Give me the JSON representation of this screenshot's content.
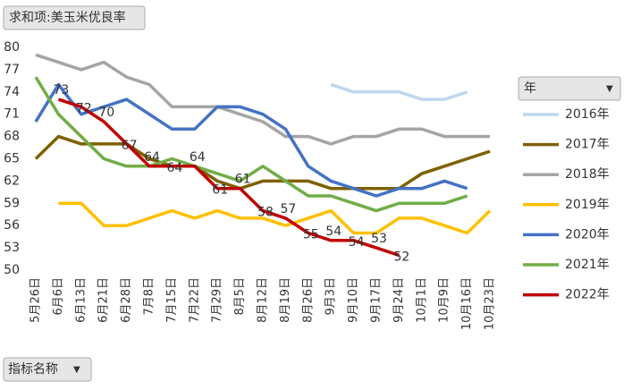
{
  "chart_data": {
    "type": "line",
    "title": "求和项:美玉米优良率",
    "legend_title": "年",
    "x_field": "指标名称",
    "categories": [
      "5月26日",
      "6月6日",
      "6月13日",
      "6月21日",
      "6月28日",
      "7月8日",
      "7月15日",
      "7月22日",
      "7月29日",
      "8月5日",
      "8月12日",
      "8月19日",
      "8月26日",
      "9月3日",
      "9月10日",
      "9月17日",
      "9月24日",
      "10月1日",
      "10月9日",
      "10月16日",
      "10月23日"
    ],
    "ylim": [
      50,
      80
    ],
    "yticks": [
      50,
      53,
      56,
      59,
      62,
      65,
      68,
      71,
      74,
      77,
      80
    ],
    "series": [
      {
        "name": "2016年",
        "color": "#bdd7ee",
        "values": [
          null,
          null,
          null,
          null,
          null,
          null,
          null,
          null,
          null,
          null,
          null,
          null,
          null,
          75,
          74,
          74,
          74,
          73,
          73,
          74,
          null
        ]
      },
      {
        "name": "2017年",
        "color": "#7f6000",
        "values": [
          65,
          68,
          67,
          67,
          67,
          65,
          64,
          64,
          62,
          61,
          62,
          62,
          62,
          61,
          61,
          61,
          61,
          63,
          64,
          65,
          66
        ]
      },
      {
        "name": "2018年",
        "color": "#a5a5a5",
        "values": [
          79,
          78,
          77,
          78,
          76,
          75,
          72,
          72,
          72,
          71,
          70,
          68,
          68,
          67,
          68,
          68,
          69,
          69,
          68,
          68,
          68
        ]
      },
      {
        "name": "2019年",
        "color": "#ffc000",
        "values": [
          null,
          59,
          59,
          56,
          56,
          57,
          58,
          57,
          58,
          57,
          57,
          56,
          57,
          58,
          55,
          55,
          57,
          57,
          56,
          55,
          58
        ]
      },
      {
        "name": "2020年",
        "color": "#4472c4",
        "values": [
          70,
          75,
          71,
          72,
          73,
          71,
          69,
          69,
          72,
          72,
          71,
          69,
          64,
          62,
          61,
          60,
          61,
          61,
          62,
          61,
          null
        ]
      },
      {
        "name": "2021年",
        "color": "#70ad47",
        "values": [
          76,
          71,
          68,
          65,
          64,
          64,
          65,
          64,
          63,
          62,
          64,
          62,
          60,
          60,
          59,
          58,
          59,
          59,
          59,
          60,
          null
        ]
      },
      {
        "name": "2022年",
        "color": "#c00000",
        "values": [
          null,
          73,
          72,
          70,
          67,
          64,
          64,
          64,
          61,
          61,
          58,
          57,
          55,
          54,
          54,
          53,
          52,
          null,
          null,
          null,
          null
        ],
        "labels": true
      }
    ]
  }
}
